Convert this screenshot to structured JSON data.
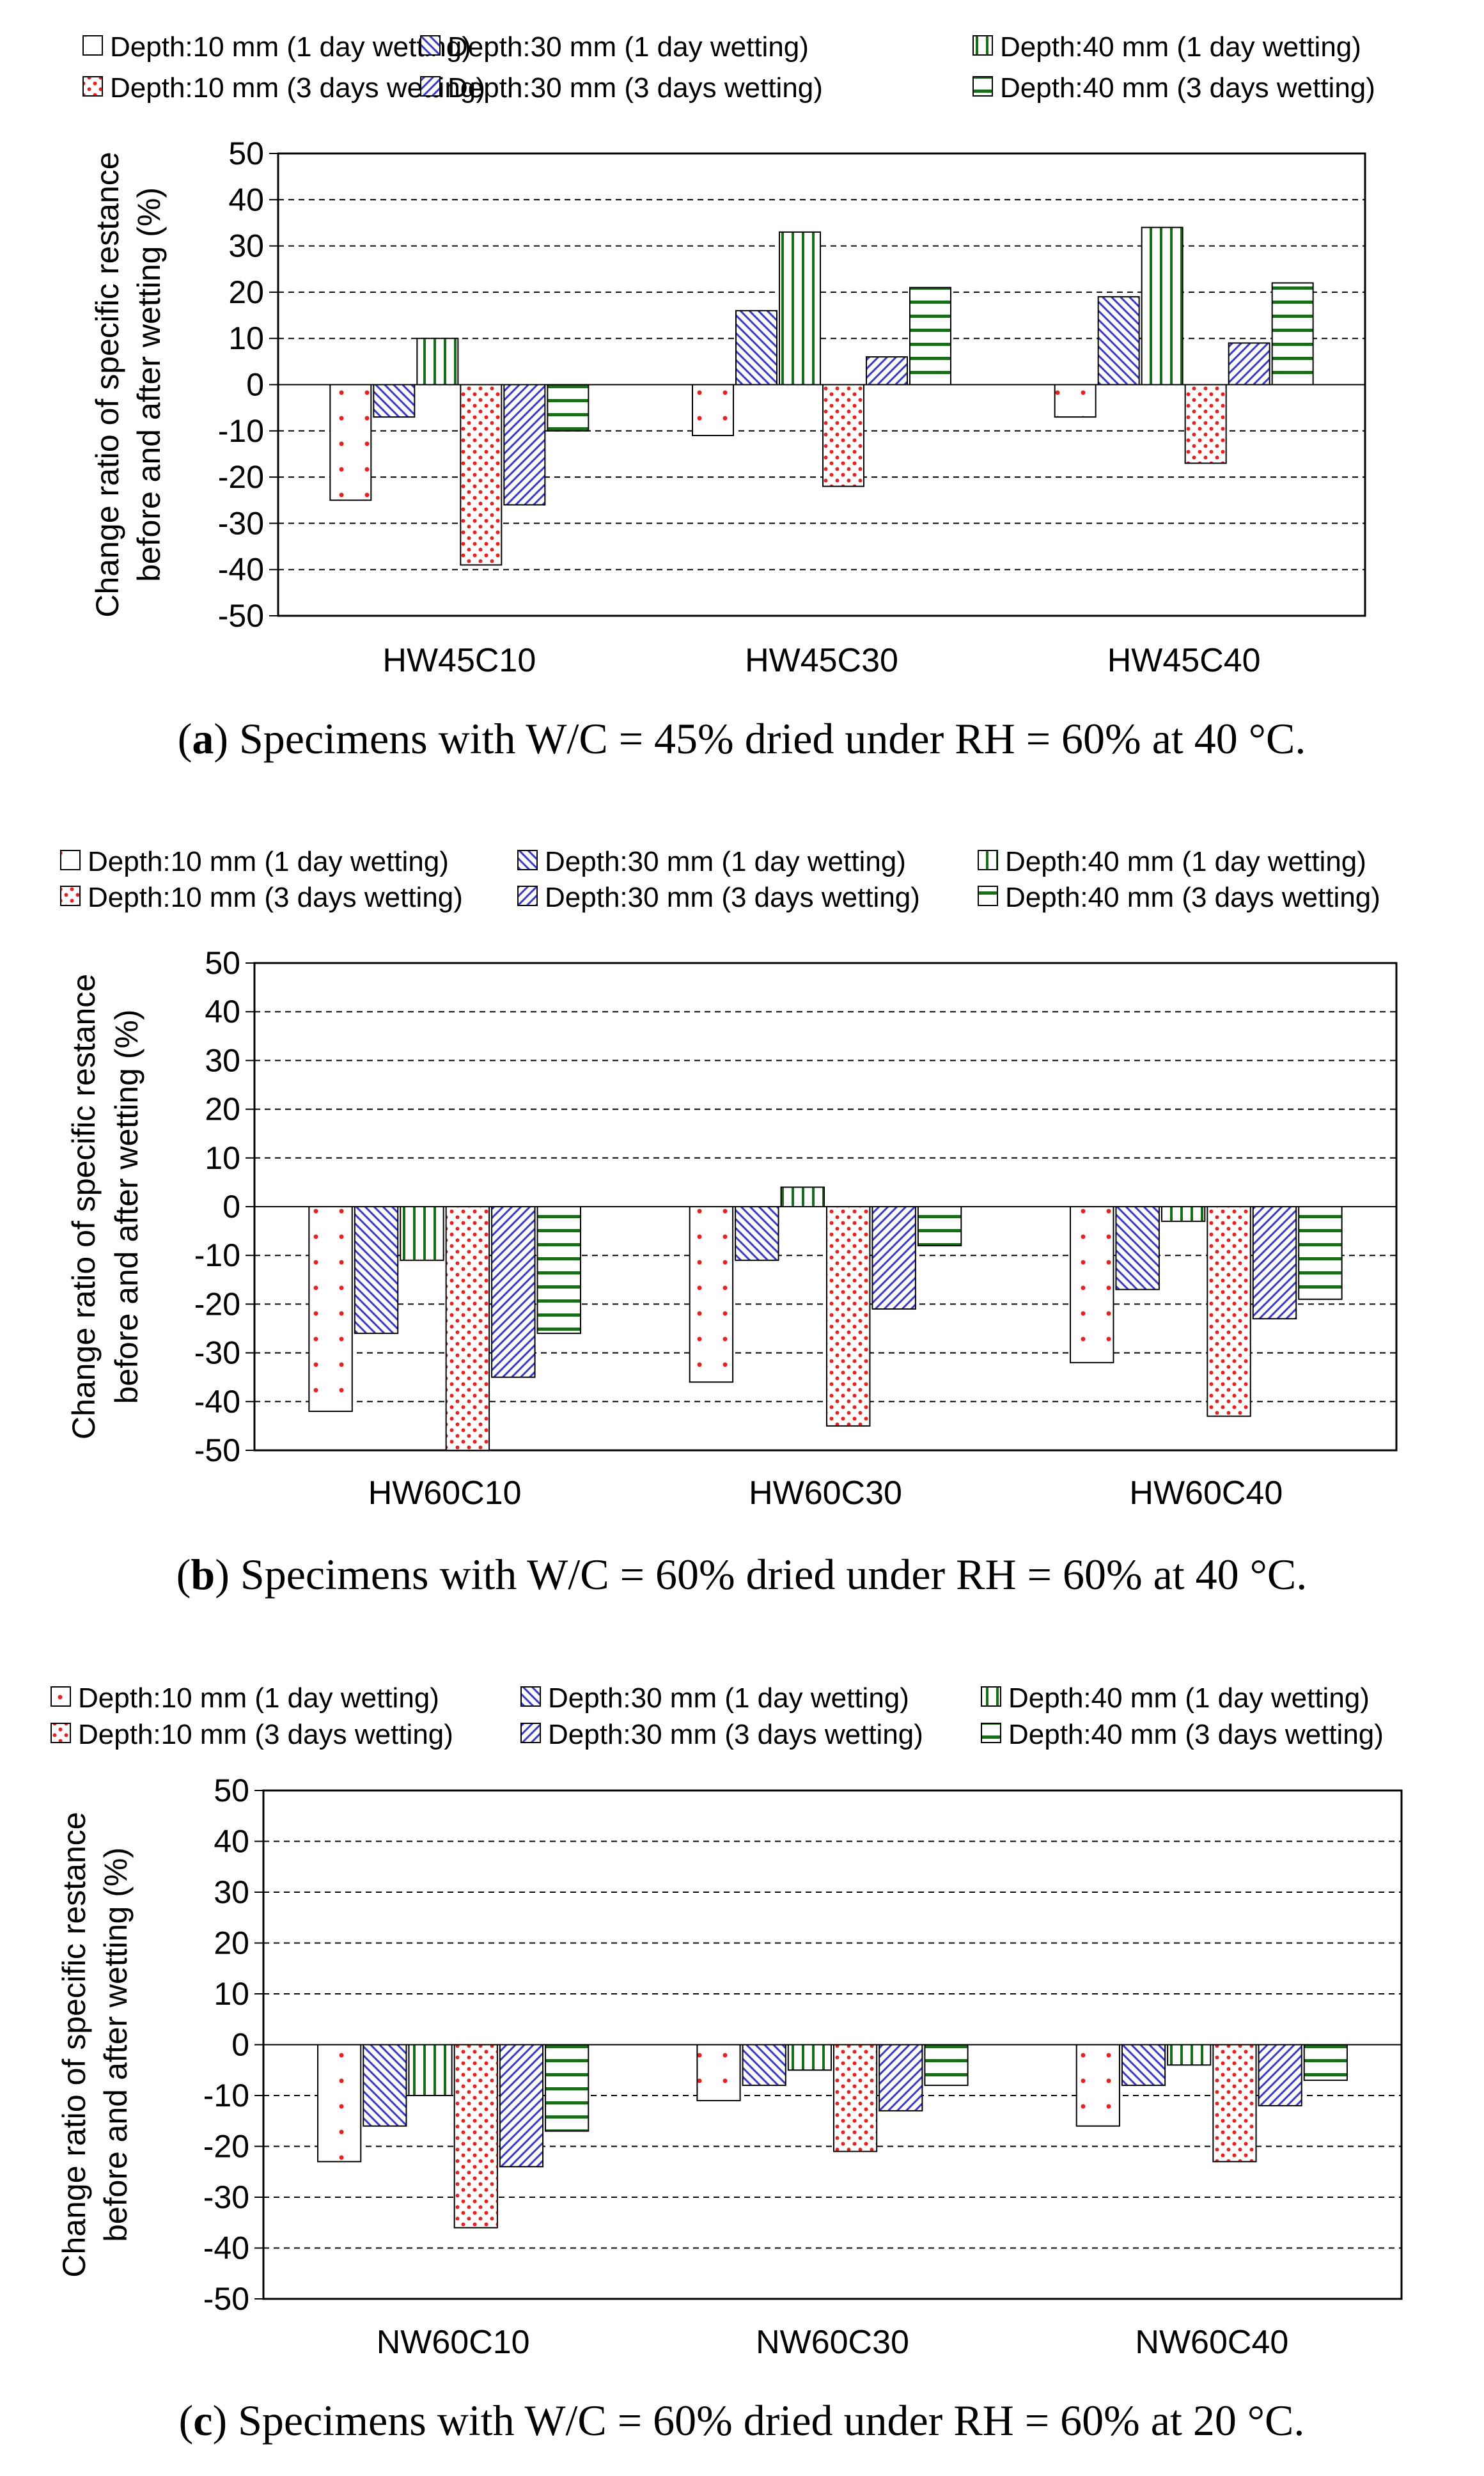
{
  "legend_labels": [
    "Depth:10 mm (1 day wetting)",
    "Depth:30 mm (1 day wetting)",
    "Depth:40 mm (1 day wetting)",
    "Depth:10 mm (3 days wetting)",
    "Depth:30 mm (3 days wetting)",
    "Depth:40 mm (3 days wetting)"
  ],
  "series_colors": [
    "#d6d6d6",
    "#3a3acc",
    "#1a6b1a",
    "#e82020",
    "#3a3acc",
    "#1a6b1a"
  ],
  "chart_data": [
    {
      "type": "bar",
      "panel": "a",
      "caption_letter": "a",
      "caption_text": ") Specimens with W/C = 45% dried under RH = 60% at 40 °C.",
      "categories": [
        "HW45C10",
        "HW45C30",
        "HW45C40"
      ],
      "ylabel_line1": "Change ratio of specific restance",
      "ylabel_line2": "before and after wetting (%)",
      "ylim": [
        -50,
        50
      ],
      "yticks": [
        50,
        40,
        30,
        20,
        10,
        0,
        -10,
        -20,
        -30,
        -40,
        -50
      ],
      "grid": true,
      "legend_position": "top",
      "series": [
        {
          "name": "Depth:10 mm (1 day wetting)",
          "values": [
            -25,
            -11,
            -7
          ]
        },
        {
          "name": "Depth:30 mm (1 day wetting)",
          "values": [
            -7,
            16,
            19
          ]
        },
        {
          "name": "Depth:40 mm (1 day wetting)",
          "values": [
            10,
            33,
            34
          ]
        },
        {
          "name": "Depth:10 mm (3 days wetting)",
          "values": [
            -39,
            -22,
            -17
          ]
        },
        {
          "name": "Depth:30 mm (3 days wetting)",
          "values": [
            -26,
            6,
            9
          ]
        },
        {
          "name": "Depth:40 mm (3 days wetting)",
          "values": [
            -10,
            21,
            22
          ]
        }
      ]
    },
    {
      "type": "bar",
      "panel": "b",
      "caption_letter": "b",
      "caption_text": ") Specimens with W/C = 60% dried under RH = 60% at 40 °C.",
      "categories": [
        "HW60C10",
        "HW60C30",
        "HW60C40"
      ],
      "ylabel_line1": "Change ratio of specific restance",
      "ylabel_line2": "before and after wetting (%)",
      "ylim": [
        -50,
        50
      ],
      "yticks": [
        50,
        40,
        30,
        20,
        10,
        0,
        -10,
        -20,
        -30,
        -40,
        -50
      ],
      "grid": true,
      "legend_position": "top",
      "series": [
        {
          "name": "Depth:10 mm (1 day wetting)",
          "values": [
            -42,
            -36,
            -32
          ]
        },
        {
          "name": "Depth:30 mm (1 day wetting)",
          "values": [
            -26,
            -11,
            -17
          ]
        },
        {
          "name": "Depth:40 mm (1 day wetting)",
          "values": [
            -11,
            4,
            -3
          ]
        },
        {
          "name": "Depth:10 mm (3 days wetting)",
          "values": [
            -50,
            -45,
            -43
          ]
        },
        {
          "name": "Depth:30 mm (3 days wetting)",
          "values": [
            -35,
            -21,
            -23
          ]
        },
        {
          "name": "Depth:40 mm (3 days wetting)",
          "values": [
            -26,
            -8,
            -19
          ]
        }
      ]
    },
    {
      "type": "bar",
      "panel": "c",
      "caption_letter": "c",
      "caption_text": ") Specimens with W/C = 60% dried under RH = 60% at 20 °C.",
      "categories": [
        "NW60C10",
        "NW60C30",
        "NW60C40"
      ],
      "ylabel_line1": "Change ratio of specific restance",
      "ylabel_line2": "before and after wetting (%)",
      "ylim": [
        -50,
        50
      ],
      "yticks": [
        50,
        40,
        30,
        20,
        10,
        0,
        -10,
        -20,
        -30,
        -40,
        -50
      ],
      "grid": true,
      "legend_position": "top",
      "series": [
        {
          "name": "Depth:10 mm (1 day wetting)",
          "values": [
            -23,
            -11,
            -16
          ]
        },
        {
          "name": "Depth:30 mm (1 day wetting)",
          "values": [
            -16,
            -8,
            -8
          ]
        },
        {
          "name": "Depth:40 mm (1 day wetting)",
          "values": [
            -10,
            -5,
            -4
          ]
        },
        {
          "name": "Depth:10 mm (3 days wetting)",
          "values": [
            -36,
            -21,
            -23
          ]
        },
        {
          "name": "Depth:30 mm (3 days wetting)",
          "values": [
            -24,
            -13,
            -12
          ]
        },
        {
          "name": "Depth:40 mm (3 days wetting)",
          "values": [
            -17,
            -8,
            -7
          ]
        }
      ]
    }
  ]
}
